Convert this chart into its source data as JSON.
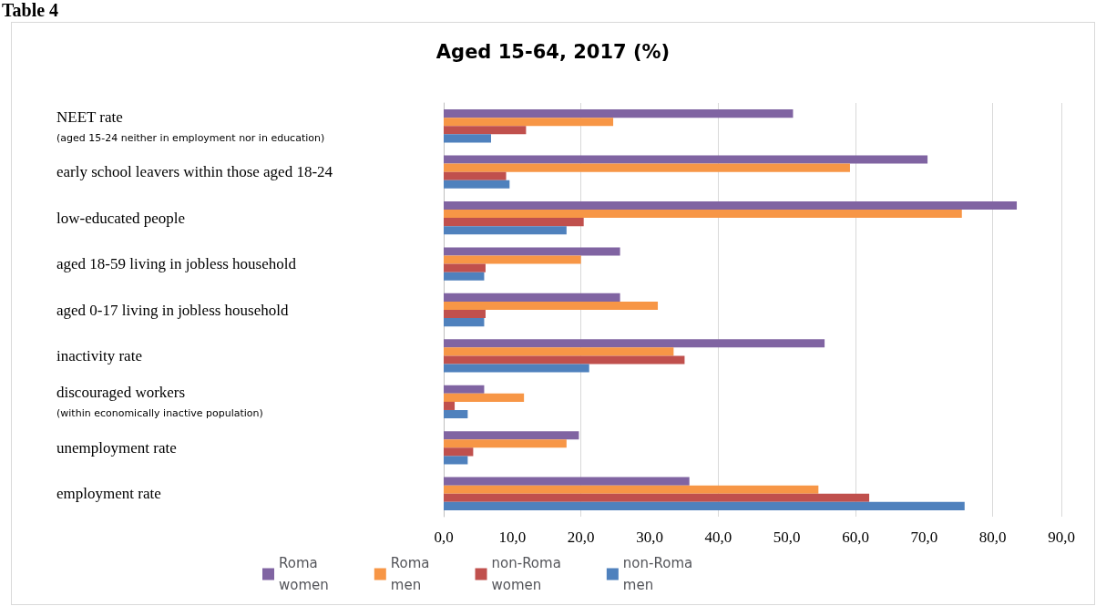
{
  "chart_data": {
    "type": "bar",
    "orientation": "horizontal",
    "title": "Aged 15-64, 2017 (%)",
    "annotations": [
      "Table 4"
    ],
    "categories": [
      "NEET rate\n(aged 15-24 neither in employment nor in education)",
      "early school leavers within those aged 18-24",
      "low-educated people",
      "aged 18-59 living in jobless household",
      "aged 0-17 living in jobless household",
      "inactivity rate",
      "discouraged workers\n(within economically inactive population)",
      "unemployment rate",
      "employment rate"
    ],
    "series": [
      {
        "name": "Roma women",
        "color": "#8064a2",
        "values": [
          50.9,
          70.5,
          83.5,
          25.7,
          25.7,
          55.5,
          5.9,
          19.7,
          35.8
        ]
      },
      {
        "name": "Roma men",
        "color": "#f79646",
        "values": [
          24.7,
          59.2,
          75.5,
          20.0,
          31.2,
          33.5,
          11.7,
          17.9,
          54.6
        ]
      },
      {
        "name": "non-Roma women",
        "color": "#c0504d",
        "values": [
          12.0,
          9.1,
          20.4,
          6.1,
          6.1,
          35.1,
          1.6,
          4.3,
          62.0
        ]
      },
      {
        "name": "non-Roma men",
        "color": "#4f81bd",
        "values": [
          6.9,
          9.6,
          17.9,
          5.9,
          5.9,
          21.2,
          3.5,
          3.5,
          75.9
        ]
      }
    ],
    "xlim": [
      0,
      90
    ],
    "xticks": [
      {
        "value": 0,
        "label": "0,0"
      },
      {
        "value": 10,
        "label": "10,0"
      },
      {
        "value": 20,
        "label": "20,0"
      },
      {
        "value": 30,
        "label": "30,0"
      },
      {
        "value": 40,
        "label": "40,0"
      },
      {
        "value": 50,
        "label": "50,0"
      },
      {
        "value": 60,
        "label": "60,0"
      },
      {
        "value": 70,
        "label": "70,0"
      },
      {
        "value": 80,
        "label": "80,0"
      },
      {
        "value": 90,
        "label": "90,0"
      }
    ],
    "grid": "x",
    "legend": "bottom"
  }
}
